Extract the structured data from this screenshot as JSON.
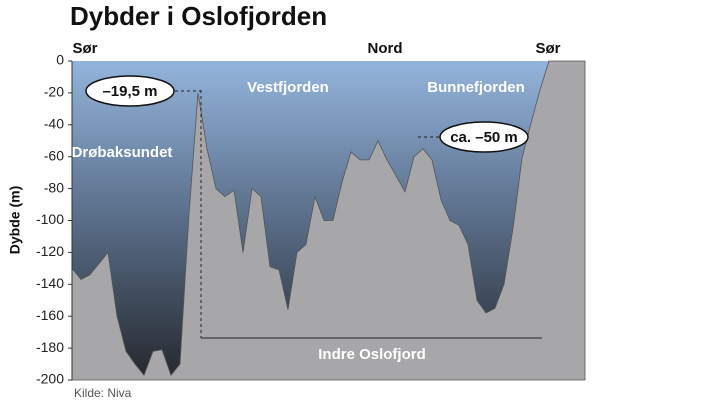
{
  "chart_data": {
    "type": "area",
    "title": "Dybder i Oslofjorden",
    "y_label": "Dybde (m)",
    "source": "Kilde: Niva",
    "top_labels": [
      "Sør",
      "Nord",
      "Sør"
    ],
    "regions": [
      "Drøbaksundet",
      "Vestfjorden",
      "Bunnefjorden",
      "Indre Oslofjord"
    ],
    "annotations": [
      "–19,5 m",
      "ca. –50 m"
    ],
    "values": [
      -130,
      -137,
      -134,
      -127,
      -120,
      -160,
      -182,
      -190,
      -197,
      -182,
      -181,
      -197,
      -190,
      -96,
      -20,
      -55,
      -80,
      -85,
      -81,
      -120,
      -80,
      -85,
      -129,
      -131,
      -156,
      -120,
      -115,
      -85,
      -100,
      -100,
      -76,
      -57,
      -62,
      -62,
      -50,
      -62,
      -72,
      -82,
      -60,
      -55,
      -62,
      -87,
      -100,
      -103,
      -115,
      -150,
      -158,
      -155,
      -140,
      -105,
      -61,
      -39,
      -18,
      0,
      0,
      0,
      0,
      0
    ],
    "color": "#a7a7a9",
    "ylim": [
      -200,
      0
    ],
    "yticks": [
      0,
      -20,
      -40,
      -60,
      -80,
      -100,
      -120,
      -140,
      -160,
      -180,
      -200
    ]
  }
}
